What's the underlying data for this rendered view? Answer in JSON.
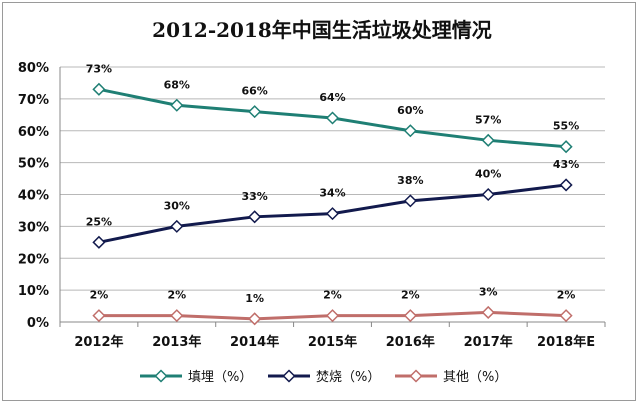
{
  "chart_data": {
    "type": "line",
    "title": "2012-2018年中国生活垃圾处理情况",
    "categories": [
      "2012年",
      "2013年",
      "2014年",
      "2015年",
      "2016年",
      "2017年",
      "2018年E"
    ],
    "y_ticks": [
      "0%",
      "10%",
      "20%",
      "30%",
      "40%",
      "50%",
      "60%",
      "70%",
      "80%"
    ],
    "ylim": [
      0,
      80
    ],
    "grid": true,
    "legend_position": "bottom",
    "series": [
      {
        "name": "填埋（%）",
        "color": "#1f7f74",
        "values": [
          73,
          68,
          66,
          64,
          60,
          57,
          55
        ],
        "labels": [
          "73%",
          "68%",
          "66%",
          "64%",
          "60%",
          "57%",
          "55%"
        ]
      },
      {
        "name": "焚烧（%）",
        "color": "#121a4d",
        "values": [
          25,
          30,
          33,
          34,
          38,
          40,
          43
        ],
        "labels": [
          "25%",
          "30%",
          "33%",
          "34%",
          "38%",
          "40%",
          "43%"
        ]
      },
      {
        "name": "其他（%）",
        "color": "#c06e6a",
        "values": [
          2,
          2,
          1,
          2,
          2,
          3,
          2
        ],
        "labels": [
          "2%",
          "2%",
          "1%",
          "2%",
          "2%",
          "3%",
          "2%"
        ]
      }
    ]
  }
}
